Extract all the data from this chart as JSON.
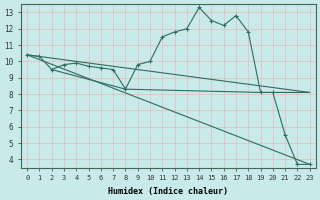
{
  "xlabel": "Humidex (Indice chaleur)",
  "bg_color": "#c8eaea",
  "line_color": "#2e6b60",
  "grid_color": "#b0d8d8",
  "xlim": [
    -0.5,
    23.5
  ],
  "ylim": [
    3.5,
    13.5
  ],
  "yticks": [
    4,
    5,
    6,
    7,
    8,
    9,
    10,
    11,
    12,
    13
  ],
  "xticks": [
    0,
    1,
    2,
    3,
    4,
    5,
    6,
    7,
    8,
    9,
    10,
    11,
    12,
    13,
    14,
    15,
    16,
    17,
    18,
    19,
    20,
    21,
    22,
    23
  ],
  "line_main": {
    "x": [
      0,
      1,
      2,
      3,
      4,
      5,
      6,
      7,
      8,
      9,
      10,
      11,
      12,
      13,
      14,
      15,
      16,
      17,
      18,
      19,
      20,
      21,
      22,
      23
    ],
    "y": [
      10.4,
      10.3,
      9.5,
      9.8,
      9.9,
      9.7,
      9.6,
      9.5,
      8.3,
      9.8,
      10.0,
      11.5,
      11.8,
      12.0,
      13.3,
      12.5,
      12.2,
      12.8,
      11.8,
      8.1,
      8.1,
      5.5,
      3.7,
      3.7
    ]
  },
  "line_diag1": {
    "x": [
      0,
      23
    ],
    "y": [
      10.4,
      8.1
    ]
  },
  "line_diag2": {
    "x": [
      0,
      23
    ],
    "y": [
      10.4,
      3.7
    ]
  },
  "line_diag3": {
    "x": [
      2,
      8,
      19,
      23
    ],
    "y": [
      9.5,
      8.3,
      8.1,
      8.1
    ]
  }
}
